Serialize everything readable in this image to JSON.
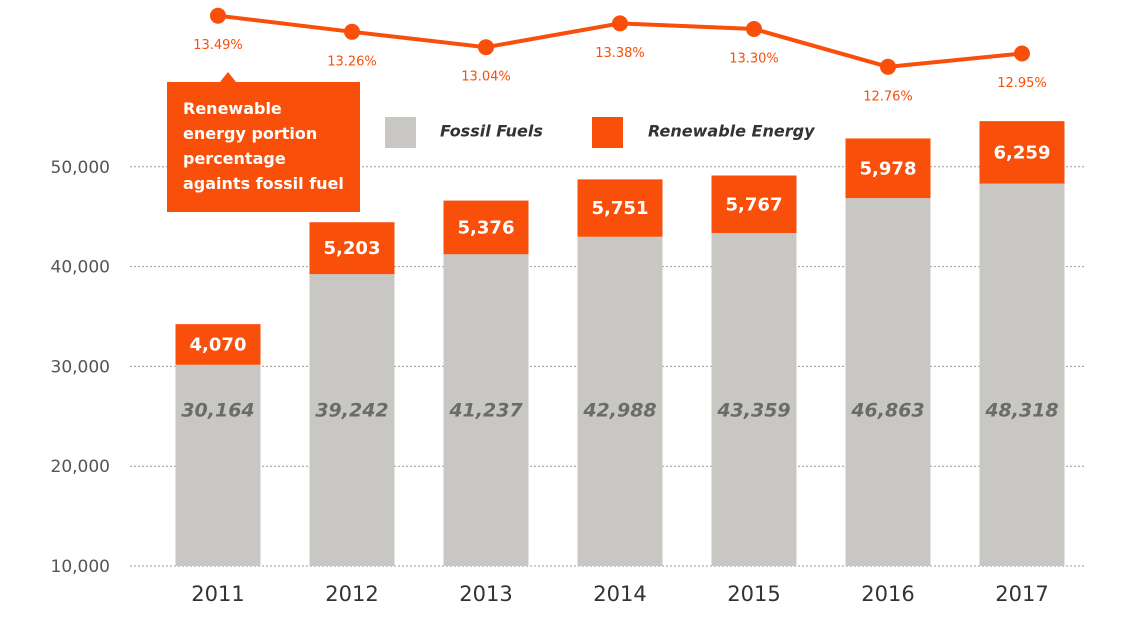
{
  "chart_data": {
    "type": "bar",
    "categories": [
      "2011",
      "2012",
      "2013",
      "2014",
      "2015",
      "2016",
      "2017"
    ],
    "series": [
      {
        "name": "Fossil Fuels",
        "color": "#c8c7c3",
        "values": [
          30164,
          39242,
          41237,
          42988,
          43359,
          46863,
          48318
        ],
        "value_labels": [
          "30,164",
          "39,242",
          "41,237",
          "42,988",
          "43,359",
          "46,863",
          "48,318"
        ]
      },
      {
        "name": "Renewable Energy",
        "color": "#f84f0a",
        "values": [
          4070,
          5203,
          5376,
          5751,
          5767,
          5978,
          6259
        ],
        "value_labels": [
          "4,070",
          "5,203",
          "5,376",
          "5,751",
          "5,767",
          "5,978",
          "6,259"
        ]
      },
      {
        "type": "line",
        "axis": "y2",
        "color": "#f84f0a",
        "values": [
          13.49,
          13.26,
          13.04,
          13.38,
          13.3,
          12.76,
          12.95
        ],
        "value_labels": [
          "13.49%",
          "13.26%",
          "13.04%",
          "13.38%",
          "13.30%",
          "12.76%",
          "12.95%"
        ]
      }
    ],
    "annotation": [
      "Renewable",
      "energy portion",
      "percentage",
      "againts fossil fuel"
    ],
    "ylim": [
      10000,
      60000
    ],
    "yticks": [
      {
        "value": 10000,
        "label": "10,000"
      },
      {
        "value": 20000,
        "label": "20,000"
      },
      {
        "value": 30000,
        "label": "30,000"
      },
      {
        "value": 40000,
        "label": "40,000"
      },
      {
        "value": 50000,
        "label": "50,000"
      }
    ],
    "y2lim": [
      12.5,
      13.7
    ],
    "grid": true
  }
}
